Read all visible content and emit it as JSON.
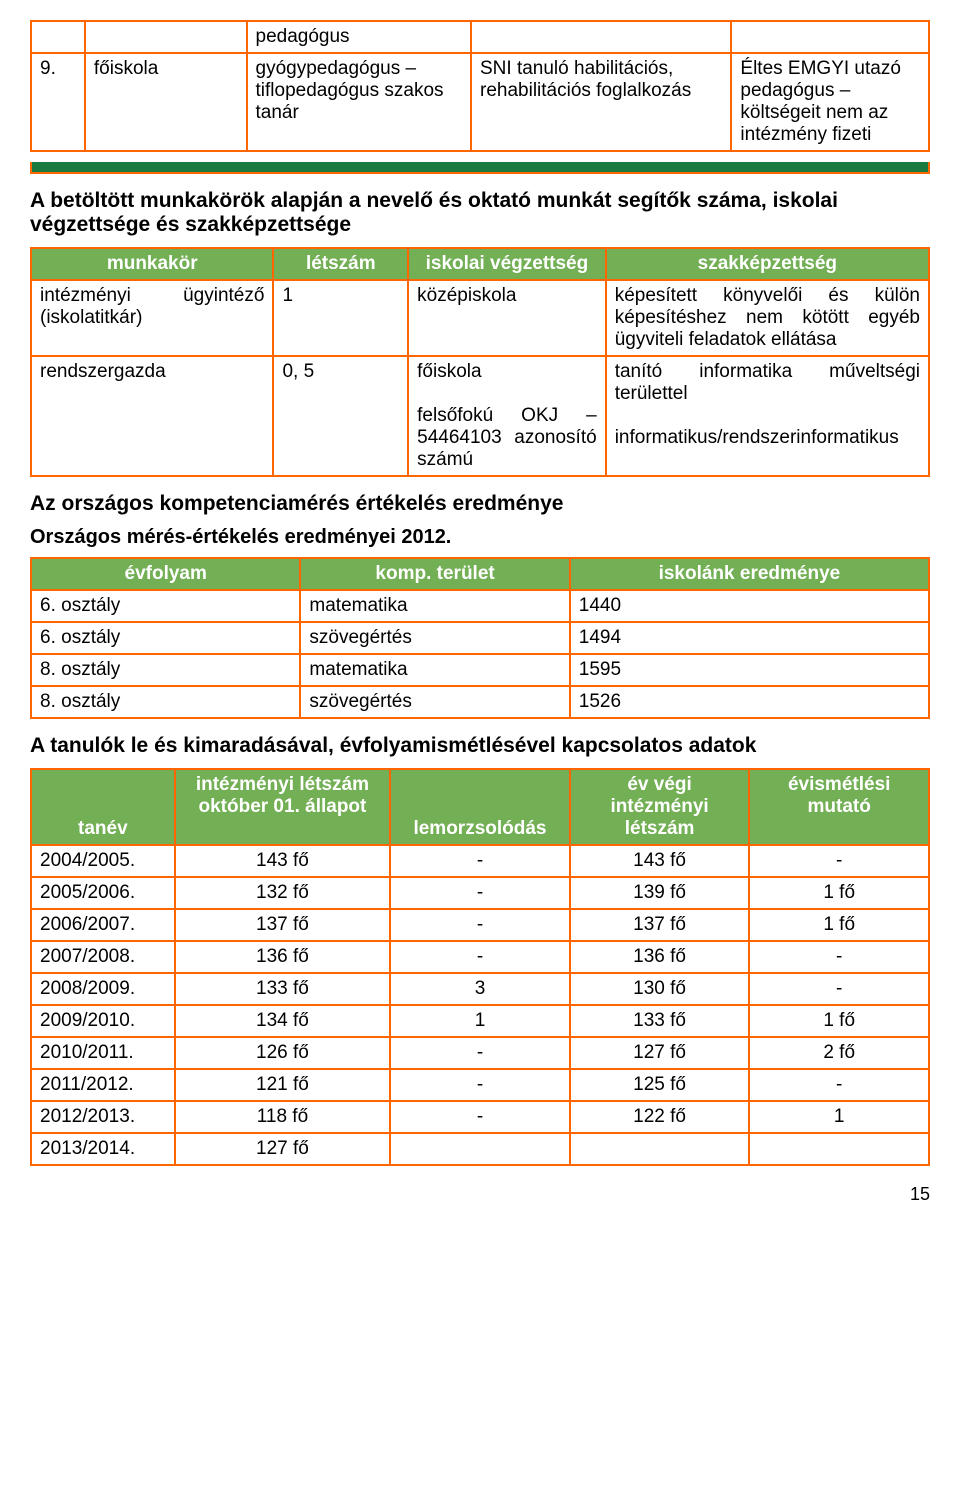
{
  "top_table": {
    "rows": [
      {
        "c3": "pedagógus"
      },
      {
        "c1": "9.",
        "c2": "főiskola",
        "c3": "gyógypedagógus – tiflopedagógus szakos tanár",
        "c4": "SNI tanuló habilitációs, rehabilitációs foglalkozás",
        "c5": "Éltes EMGYI utazó pedagógus – költségeit nem az intézmény fizeti"
      }
    ]
  },
  "section1_heading": "A betöltött munkakörök alapján a nevelő és oktató munkát segítők száma, iskolai végzettsége és szakképzettsége",
  "table2": {
    "headers": [
      "munkakör",
      "létszám",
      "iskolai végzettség",
      "szakképzettség"
    ],
    "rows": [
      {
        "c1": "intézményi ügyintéző (iskolatitkár)",
        "c2": "1",
        "c3": "középiskola",
        "c4": "képesített könyvelői és külön képesítéshez nem kötött egyéb ügyviteli feladatok ellátása"
      },
      {
        "c1": "rendszergazda",
        "c2": "0, 5",
        "c3": "főiskola\n\nfelsőfokú OKJ – 54464103 azonosító számú",
        "c4": "tanító informatika műveltségi területtel\n\ninformatikus/rendszerinformatikus"
      }
    ]
  },
  "section2_heading": "Az országos kompetenciamérés értékelés eredménye",
  "section2_sub": "Országos mérés-értékelés eredményei 2012.",
  "table3": {
    "headers": [
      "évfolyam",
      "komp. terület",
      "iskolánk eredménye"
    ],
    "rows": [
      {
        "c1": "6. osztály",
        "c2": "matematika",
        "c3": "1440"
      },
      {
        "c1": "6. osztály",
        "c2": "szövegértés",
        "c3": "1494"
      },
      {
        "c1": "8. osztály",
        "c2": "matematika",
        "c3": "1595"
      },
      {
        "c1": "8. osztály",
        "c2": "szövegértés",
        "c3": "1526"
      }
    ]
  },
  "section3_heading": "A tanulók le és kimaradásával, évfolyamismétlésével kapcsolatos adatok",
  "table4": {
    "headers": [
      "tanév",
      "intézményi létszám október 01. állapot",
      "lemorzsolódás",
      "év végi intézményi létszám",
      "évismétlési mutató"
    ],
    "rows": [
      {
        "c1": "2004/2005.",
        "c2": "143 fő",
        "c3": "-",
        "c4": "143 fő",
        "c5": "-"
      },
      {
        "c1": "2005/2006.",
        "c2": "132 fő",
        "c3": "-",
        "c4": "139 fő",
        "c5": "1 fő"
      },
      {
        "c1": "2006/2007.",
        "c2": "137 fő",
        "c3": "-",
        "c4": "137 fő",
        "c5": "1 fő"
      },
      {
        "c1": "2007/2008.",
        "c2": "136 fő",
        "c3": "-",
        "c4": "136 fő",
        "c5": "-"
      },
      {
        "c1": "2008/2009.",
        "c2": "133 fő",
        "c3": "3",
        "c4": "130 fő",
        "c5": "-"
      },
      {
        "c1": "2009/2010.",
        "c2": "134 fő",
        "c3": "1",
        "c4": "133 fő",
        "c5": "1 fő"
      },
      {
        "c1": "2010/2011.",
        "c2": "126 fő",
        "c3": "-",
        "c4": "127 fő",
        "c5": "2 fő"
      },
      {
        "c1": "2011/2012.",
        "c2": "121 fő",
        "c3": "-",
        "c4": "125 fő",
        "c5": "-"
      },
      {
        "c1": "2012/2013.",
        "c2": "118 fő",
        "c3": "-",
        "c4": "122 fő",
        "c5": "1"
      },
      {
        "c1": "2013/2014.",
        "c2": "127 fő",
        "c3": "",
        "c4": "",
        "c5": ""
      }
    ]
  },
  "pagenum": "15"
}
